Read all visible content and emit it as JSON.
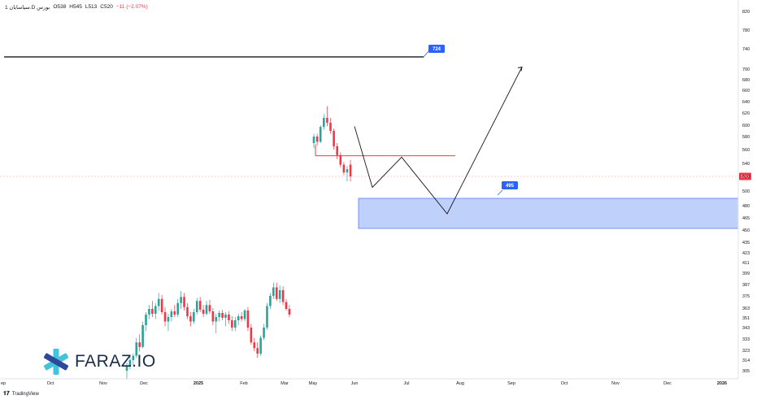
{
  "legend": {
    "symbol": "1 سیاسایان.D بورس",
    "open": "O538",
    "high": "H545",
    "low": "L513",
    "close": "C520",
    "change": "−11 (−2.07%)"
  },
  "brand": {
    "name": "FARAZ.IO"
  },
  "tradingview": {
    "label": "TradingView"
  },
  "colors": {
    "up": "#26a69a",
    "down": "#f23645",
    "zone": "#bfd0fb",
    "label_blue": "#2962ff"
  },
  "chart_data": {
    "type": "candlestick",
    "y_ticks": [
      "820",
      "780",
      "740",
      "700",
      "680",
      "660",
      "640",
      "620",
      "600",
      "580",
      "560",
      "540",
      "520",
      "500",
      "480",
      "465",
      "450",
      "435",
      "423",
      "411",
      "399",
      "387",
      "375",
      "363",
      "351",
      "343",
      "333",
      "323",
      "314",
      "305"
    ],
    "x_ticks": [
      "ep",
      "Oct",
      "Nov",
      "Dec",
      "2025",
      "Feb",
      "Mar",
      "May",
      "Jun",
      "Jul",
      "Aug",
      "Sep",
      "Oct",
      "Nov",
      "Dec",
      "2026"
    ],
    "last_price": 520,
    "annotations": [
      {
        "kind": "horizontal",
        "price": 724,
        "label": "724"
      },
      {
        "kind": "zone",
        "top": 490,
        "bottom": 452,
        "label": "495"
      },
      {
        "kind": "horizontal",
        "price": 551
      }
    ],
    "projection_path": [
      "Jun",
      "Jul",
      "Aug",
      "Sep"
    ],
    "candles": [
      {
        "o": 305,
        "h": 312,
        "l": 296,
        "c": 309
      },
      {
        "o": 309,
        "h": 318,
        "l": 306,
        "c": 314
      },
      {
        "o": 314,
        "h": 320,
        "l": 310,
        "c": 318
      },
      {
        "o": 318,
        "h": 334,
        "l": 316,
        "c": 330
      },
      {
        "o": 330,
        "h": 337,
        "l": 322,
        "c": 326
      },
      {
        "o": 326,
        "h": 348,
        "l": 325,
        "c": 345
      },
      {
        "o": 345,
        "h": 358,
        "l": 340,
        "c": 355
      },
      {
        "o": 355,
        "h": 366,
        "l": 350,
        "c": 362
      },
      {
        "o": 362,
        "h": 370,
        "l": 352,
        "c": 356
      },
      {
        "o": 356,
        "h": 368,
        "l": 350,
        "c": 365
      },
      {
        "o": 365,
        "h": 378,
        "l": 360,
        "c": 372
      },
      {
        "o": 372,
        "h": 376,
        "l": 355,
        "c": 358
      },
      {
        "o": 358,
        "h": 364,
        "l": 344,
        "c": 348
      },
      {
        "o": 348,
        "h": 356,
        "l": 340,
        "c": 352
      },
      {
        "o": 352,
        "h": 362,
        "l": 348,
        "c": 359
      },
      {
        "o": 359,
        "h": 366,
        "l": 352,
        "c": 355
      },
      {
        "o": 355,
        "h": 372,
        "l": 352,
        "c": 368
      },
      {
        "o": 368,
        "h": 380,
        "l": 362,
        "c": 374
      },
      {
        "o": 374,
        "h": 378,
        "l": 360,
        "c": 364
      },
      {
        "o": 364,
        "h": 368,
        "l": 350,
        "c": 353
      },
      {
        "o": 353,
        "h": 358,
        "l": 344,
        "c": 348
      },
      {
        "o": 348,
        "h": 362,
        "l": 346,
        "c": 358
      },
      {
        "o": 358,
        "h": 373,
        "l": 355,
        "c": 370
      },
      {
        "o": 370,
        "h": 374,
        "l": 358,
        "c": 361
      },
      {
        "o": 361,
        "h": 366,
        "l": 352,
        "c": 356
      },
      {
        "o": 356,
        "h": 370,
        "l": 354,
        "c": 366
      },
      {
        "o": 366,
        "h": 371,
        "l": 356,
        "c": 359
      },
      {
        "o": 359,
        "h": 363,
        "l": 345,
        "c": 348
      },
      {
        "o": 348,
        "h": 356,
        "l": 338,
        "c": 352
      },
      {
        "o": 352,
        "h": 360,
        "l": 348,
        "c": 357
      },
      {
        "o": 357,
        "h": 361,
        "l": 349,
        "c": 351
      },
      {
        "o": 351,
        "h": 358,
        "l": 344,
        "c": 355
      },
      {
        "o": 355,
        "h": 359,
        "l": 346,
        "c": 349
      },
      {
        "o": 349,
        "h": 353,
        "l": 340,
        "c": 343
      },
      {
        "o": 343,
        "h": 352,
        "l": 340,
        "c": 349
      },
      {
        "o": 349,
        "h": 356,
        "l": 345,
        "c": 353
      },
      {
        "o": 353,
        "h": 358,
        "l": 348,
        "c": 350
      },
      {
        "o": 350,
        "h": 362,
        "l": 348,
        "c": 360
      },
      {
        "o": 360,
        "h": 364,
        "l": 340,
        "c": 343
      },
      {
        "o": 343,
        "h": 346,
        "l": 328,
        "c": 330
      },
      {
        "o": 330,
        "h": 334,
        "l": 322,
        "c": 325
      },
      {
        "o": 325,
        "h": 330,
        "l": 316,
        "c": 320
      },
      {
        "o": 320,
        "h": 336,
        "l": 318,
        "c": 334
      },
      {
        "o": 334,
        "h": 346,
        "l": 332,
        "c": 343
      },
      {
        "o": 343,
        "h": 368,
        "l": 341,
        "c": 365
      },
      {
        "o": 365,
        "h": 378,
        "l": 362,
        "c": 375
      },
      {
        "o": 375,
        "h": 389,
        "l": 372,
        "c": 384
      },
      {
        "o": 384,
        "h": 389,
        "l": 370,
        "c": 372
      },
      {
        "o": 372,
        "h": 386,
        "l": 368,
        "c": 381
      },
      {
        "o": 381,
        "h": 385,
        "l": 366,
        "c": 369
      },
      {
        "o": 369,
        "h": 372,
        "l": 360,
        "c": 362
      },
      {
        "o": 362,
        "h": 366,
        "l": 352,
        "c": 355
      },
      {
        "o": 570,
        "h": 585,
        "l": 562,
        "c": 580
      },
      {
        "o": 580,
        "h": 585,
        "l": 566,
        "c": 572
      },
      {
        "o": 572,
        "h": 600,
        "l": 570,
        "c": 597
      },
      {
        "o": 597,
        "h": 618,
        "l": 592,
        "c": 612
      },
      {
        "o": 612,
        "h": 632,
        "l": 598,
        "c": 604
      },
      {
        "o": 604,
        "h": 612,
        "l": 585,
        "c": 590
      },
      {
        "o": 590,
        "h": 594,
        "l": 560,
        "c": 565
      },
      {
        "o": 565,
        "h": 570,
        "l": 546,
        "c": 552
      },
      {
        "o": 552,
        "h": 556,
        "l": 534,
        "c": 538
      },
      {
        "o": 538,
        "h": 542,
        "l": 522,
        "c": 526
      },
      {
        "o": 526,
        "h": 536,
        "l": 513,
        "c": 531
      },
      {
        "o": 538,
        "h": 545,
        "l": 513,
        "c": 520
      }
    ]
  }
}
